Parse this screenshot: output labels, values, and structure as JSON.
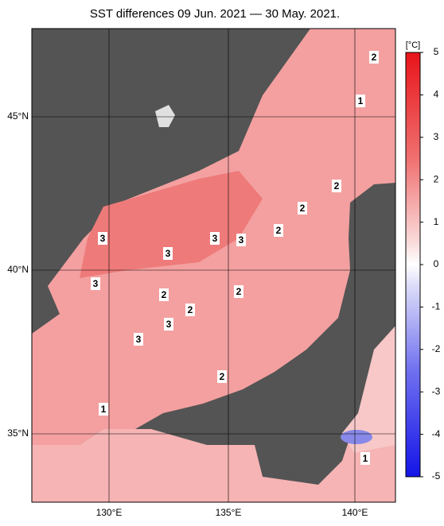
{
  "title": "SST differences 09 Jun. 2021 — 30 May. 2021.",
  "lat_labels": [
    "45°N",
    "40°N",
    "35°N"
  ],
  "lon_labels": [
    "130°E",
    "135°E",
    "140°E"
  ],
  "colorbar": {
    "unit": "[°C]",
    "ticks": [
      "5",
      "4",
      "3",
      "2",
      "1",
      "0",
      "-1",
      "-2",
      "-3",
      "-4",
      "-5"
    ]
  },
  "contour_labels": [
    "2",
    "1",
    "2",
    "2",
    "2",
    "3",
    "3",
    "3",
    "3",
    "3",
    "2",
    "2",
    "2",
    "3",
    "3",
    "2",
    "1",
    "1"
  ]
}
